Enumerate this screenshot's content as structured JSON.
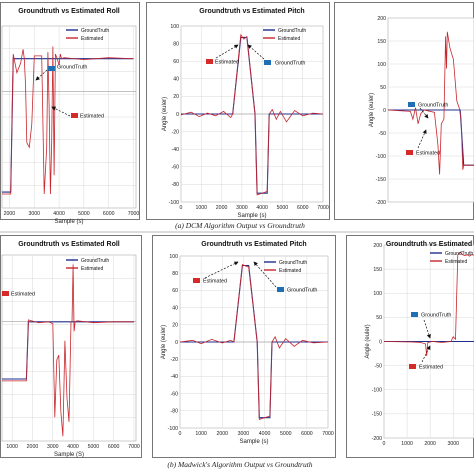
{
  "captions": {
    "top": "(a) DCM Algorithm Output vs Groundtruth",
    "bottom": "(b) Madwick's Algorithm Output vs Groundtruth"
  },
  "colors": {
    "groundtruth": "#1f2f8f",
    "estimated": "#c8262c",
    "marker": "#1f6fb5",
    "marker_est": "#d62a2a"
  },
  "chart_data": [
    {
      "type": "line",
      "panel": "a-roll",
      "title": "Groundtruth vs Estimated Roll",
      "xlabel": "Sample (s)",
      "ylabel": "",
      "xticks": [
        "2000",
        "3000",
        "4000",
        "5000",
        "6000",
        "7000"
      ],
      "yticks": [],
      "xlim": [
        1700,
        7100
      ],
      "ylim": [
        -125,
        70
      ],
      "legend": [
        "GroundTruth",
        "Estimated"
      ],
      "annotations": [
        "GroundTruth",
        "Estimated"
      ],
      "series": [
        {
          "name": "GroundTruth",
          "x": [
            1700,
            2050,
            2150,
            7000
          ],
          "y": [
            -108,
            -108,
            35,
            35
          ]
        },
        {
          "name": "Estimated",
          "x": [
            1700,
            2050,
            2150,
            2300,
            2450,
            2550,
            2600,
            2650,
            2700,
            2800,
            2900,
            3000,
            3300,
            3400,
            3500,
            3550,
            3600,
            3650,
            3700,
            3750,
            3800,
            3850,
            3950,
            4000,
            4050,
            4100,
            4200,
            5000,
            6000,
            7000
          ],
          "y": [
            -110,
            -110,
            40,
            20,
            30,
            45,
            35,
            5,
            -55,
            -60,
            -35,
            38,
            38,
            -110,
            -60,
            42,
            -15,
            -110,
            -60,
            48,
            -90,
            40,
            33,
            28,
            40,
            35,
            36,
            34,
            36,
            35
          ]
        }
      ]
    },
    {
      "type": "line",
      "panel": "a-pitch",
      "title": "Groundtruth vs Estimated Pitch",
      "xlabel": "Sample (s)",
      "ylabel": "Angle (euler)",
      "xticks": [
        "0",
        "1000",
        "2000",
        "3000",
        "4000",
        "5000",
        "6000",
        "7000"
      ],
      "yticks": [
        "100",
        "80",
        "60",
        "40",
        "20",
        "0",
        "-20",
        "-40",
        "-60",
        "-80",
        "-100"
      ],
      "xlim": [
        0,
        7000
      ],
      "ylim": [
        -100,
        100
      ],
      "legend": [
        "GroundTruth",
        "Estimated"
      ],
      "annotations": [
        "Estimated",
        "GroundTruth"
      ],
      "series": [
        {
          "name": "GroundTruth",
          "x": [
            0,
            2550,
            2950,
            3250,
            3650,
            3750,
            4250,
            4350,
            7000
          ],
          "y": [
            0,
            0,
            87,
            87,
            0,
            -90,
            -90,
            0,
            0
          ]
        },
        {
          "name": "Estimated",
          "x": [
            0,
            500,
            900,
            1300,
            1700,
            2100,
            2450,
            2550,
            2950,
            3100,
            3250,
            3650,
            3750,
            4250,
            4350,
            4500,
            4700,
            4900,
            5200,
            5600,
            6000,
            6500,
            7000
          ],
          "y": [
            -1,
            2,
            -3,
            1,
            -2,
            3,
            -4,
            0,
            90,
            85,
            88,
            0,
            -92,
            -88,
            0,
            5,
            -6,
            3,
            -9,
            4,
            -2,
            1,
            0
          ]
        }
      ]
    },
    {
      "type": "line",
      "panel": "a-yaw",
      "title": "",
      "xlabel": "",
      "ylabel": "Angle (euler)",
      "xticks": [],
      "yticks": [
        "200",
        "150",
        "100",
        "50",
        "0",
        "-50",
        "-100",
        "-150",
        "-200"
      ],
      "xlim": [
        0,
        5000
      ],
      "ylim": [
        -200,
        200
      ],
      "legend": [],
      "annotations": [
        "GroundTruth",
        "Estimated"
      ],
      "series": [
        {
          "name": "GroundTruth",
          "x": [
            0,
            2900,
            3000,
            3200,
            3400,
            3600,
            4200,
            4400,
            5000
          ],
          "y": [
            0,
            0,
            0,
            0,
            0,
            0,
            0,
            -120,
            -120
          ]
        },
        {
          "name": "Estimated",
          "x": [
            0,
            800,
            1300,
            1450,
            1600,
            1750,
            1900,
            2100,
            2700,
            2900,
            3000,
            3100,
            3250,
            3350,
            3400,
            3450,
            3600,
            3800,
            4000,
            4150,
            4250,
            4350,
            4400,
            5000
          ],
          "y": [
            0,
            -2,
            -3,
            -20,
            5,
            -30,
            -8,
            0,
            -5,
            -75,
            -140,
            -30,
            -20,
            160,
            90,
            170,
            135,
            110,
            20,
            3,
            -20,
            -130,
            -120,
            -120
          ]
        }
      ]
    },
    {
      "type": "line",
      "panel": "b-roll",
      "title": "Groundtruth vs Estimated Roll",
      "xlabel": "Sample (S)",
      "ylabel": "",
      "xticks": [
        "1000",
        "2000",
        "3000",
        "4000",
        "5000",
        "6000",
        "7000"
      ],
      "yticks": [],
      "xlim": [
        500,
        7100
      ],
      "ylim": [
        -125,
        70
      ],
      "legend": [
        "GroundTruth",
        "Estimated"
      ],
      "annotations": [
        "Estimated"
      ],
      "series": [
        {
          "name": "GroundTruth",
          "x": [
            500,
            1700,
            1800,
            7000
          ],
          "y": [
            -60,
            -60,
            0,
            0
          ]
        },
        {
          "name": "Estimated",
          "x": [
            500,
            1700,
            1800,
            2300,
            2800,
            3000,
            3100,
            3200,
            3300,
            3400,
            3500,
            3600,
            3700,
            3800,
            3900,
            3950,
            4000,
            4050,
            4100,
            4200,
            5000,
            6000,
            7000
          ],
          "y": [
            -62,
            -62,
            2,
            -1,
            0,
            -2,
            -100,
            -40,
            -35,
            -95,
            -120,
            -20,
            -80,
            -105,
            0,
            0,
            60,
            -10,
            0,
            1,
            -1,
            0,
            0
          ]
        }
      ]
    },
    {
      "type": "line",
      "panel": "b-pitch",
      "title": "Groundtruth vs Estimated Pitch",
      "xlabel": "Sample (s)",
      "ylabel": "Angle (euler)",
      "xticks": [
        "0",
        "1000",
        "2000",
        "3000",
        "4000",
        "5000",
        "6000",
        "7000"
      ],
      "yticks": [
        "100",
        "80",
        "60",
        "40",
        "20",
        "0",
        "-20",
        "-40",
        "-60",
        "-80",
        "-100"
      ],
      "xlim": [
        0,
        7000
      ],
      "ylim": [
        -100,
        100
      ],
      "legend": [
        "GroundTruth",
        "Estimated"
      ],
      "annotations": [
        "Estimated",
        "GroundTruth"
      ],
      "series": [
        {
          "name": "GroundTruth",
          "x": [
            0,
            2550,
            2950,
            3250,
            3650,
            3750,
            4250,
            4350,
            7000
          ],
          "y": [
            0,
            0,
            89,
            89,
            0,
            -88,
            -88,
            0,
            0
          ]
        },
        {
          "name": "Estimated",
          "x": [
            0,
            600,
            1000,
            1500,
            2000,
            2400,
            2550,
            2950,
            3250,
            3650,
            3750,
            4250,
            4350,
            4500,
            4700,
            5000,
            5400,
            5800,
            6300,
            7000
          ],
          "y": [
            0,
            2,
            -2,
            3,
            -1,
            2,
            0,
            90,
            87,
            0,
            -90,
            -86,
            0,
            6,
            -7,
            4,
            -5,
            2,
            -1,
            0
          ]
        }
      ]
    },
    {
      "type": "line",
      "panel": "b-yaw",
      "title": "Groundtruth vs Estimated",
      "xlabel": "",
      "ylabel": "Angle (euler)",
      "xticks": [
        "0",
        "1000",
        "2000",
        "3000"
      ],
      "yticks": [
        "200",
        "150",
        "100",
        "50",
        "0",
        "-50",
        "-100",
        "-150",
        "-200"
      ],
      "xlim": [
        0,
        3900
      ],
      "ylim": [
        -200,
        200
      ],
      "legend": [
        "GroundTruth",
        "Estimated"
      ],
      "annotations": [
        "GroundTruth",
        "Estimated"
      ],
      "series": [
        {
          "name": "GroundTruth",
          "x": [
            0,
            3000,
            3900
          ],
          "y": [
            0,
            0,
            0
          ]
        },
        {
          "name": "Estimated",
          "x": [
            0,
            1200,
            1600,
            1800,
            1850,
            1900,
            2000,
            2100,
            2500,
            2900,
            3000,
            3100,
            3200,
            3300,
            3400,
            3500,
            3600,
            3700,
            3800,
            3900
          ],
          "y": [
            0,
            -1,
            -2,
            -5,
            -30,
            -2,
            -1,
            0,
            -2,
            0,
            10,
            5,
            180,
            185,
            180,
            178,
            180,
            177,
            180,
            179
          ]
        }
      ]
    }
  ]
}
